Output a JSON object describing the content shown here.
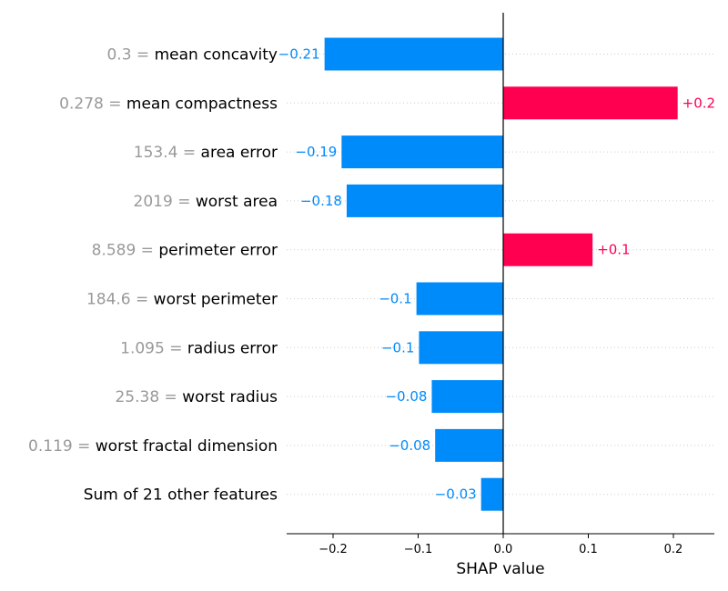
{
  "chart_data": {
    "type": "bar",
    "orientation": "horizontal",
    "xlabel": "SHAP value",
    "xlim": [
      -0.255,
      0.245
    ],
    "xticks": [
      -0.2,
      -0.1,
      0.0,
      0.1,
      0.2
    ],
    "xtick_labels": [
      "−0.2",
      "−0.1",
      "0.0",
      "0.1",
      "0.2"
    ],
    "grid": "horizontal dotted row guides",
    "colors": {
      "positive": "#ff0051",
      "negative": "#008bfb",
      "feature_value_text": "#999999"
    },
    "features": [
      {
        "value_text": "0.3",
        "name": "mean concavity",
        "shap": -0.21,
        "label": "−0.21"
      },
      {
        "value_text": "0.278",
        "name": "mean compactness",
        "shap": 0.205,
        "label": "+0.2"
      },
      {
        "value_text": "153.4",
        "name": "area error",
        "shap": -0.19,
        "label": "−0.19"
      },
      {
        "value_text": "2019",
        "name": "worst area",
        "shap": -0.184,
        "label": "−0.18"
      },
      {
        "value_text": "8.589",
        "name": "perimeter error",
        "shap": 0.105,
        "label": "+0.1"
      },
      {
        "value_text": "184.6",
        "name": "worst perimeter",
        "shap": -0.102,
        "label": "−0.1"
      },
      {
        "value_text": "1.095",
        "name": "radius error",
        "shap": -0.099,
        "label": "−0.1"
      },
      {
        "value_text": "25.38",
        "name": "worst radius",
        "shap": -0.084,
        "label": "−0.08"
      },
      {
        "value_text": "0.119",
        "name": "worst fractal dimension",
        "shap": -0.08,
        "label": "−0.08"
      },
      {
        "value_text": "",
        "name": "Sum of 21 other features",
        "shap": -0.026,
        "label": "−0.03"
      }
    ]
  }
}
